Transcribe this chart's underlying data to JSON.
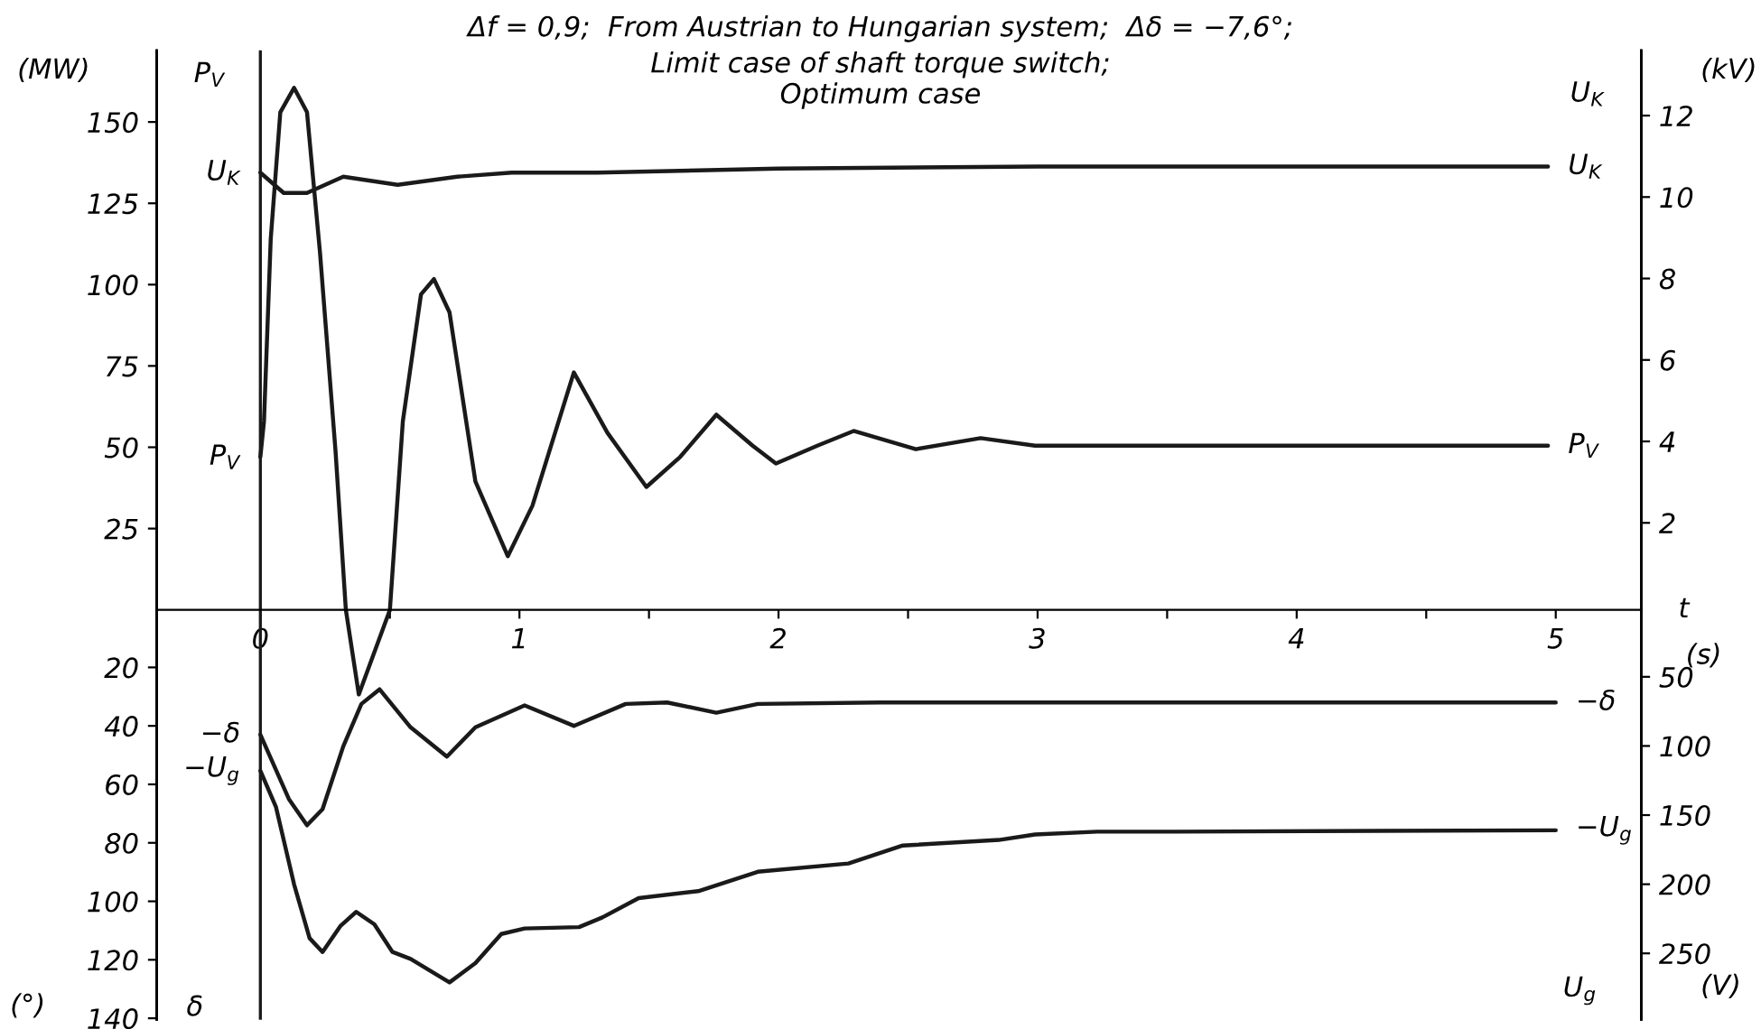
{
  "chart_data": [
    {
      "type": "line",
      "title": "Δf = 0,9;  From Austrian to Hungarian system;  Δδ = −7,6°;",
      "subtitle": "Limit case of shaft torque switch;\nOptimum case",
      "xlabel": "t",
      "ylabel": "(MW)",
      "y2label": "(kV)",
      "annotations": [
        "P$_{V}$",
        "U$_{K}$",
        "(s)"
      ],
      "xlim": [
        -0.4,
        5.33
      ],
      "xticks": [
        0,
        {
          "value": 0.5,
          "label": null
        },
        1,
        {
          "value": 1.5,
          "label": null
        },
        2,
        {
          "value": 2.5,
          "label": null
        },
        3,
        {
          "value": 3.5,
          "label": null
        },
        4,
        {
          "value": 4.5,
          "label": null
        },
        5
      ],
      "ylim": [
        -126,
        172
      ],
      "yticks": [
        25,
        50,
        75,
        100,
        125,
        150
      ],
      "y2lim": [
        -10.2,
        13.6
      ],
      "y2ticks": [
        2,
        4,
        6,
        8,
        10,
        12
      ],
      "ref_lines": [
        {
          "axis": "x",
          "value": 0
        }
      ],
      "series": [
        {
          "name": "P$_{V}$",
          "color": "#1a1a1a",
          "x": [
            0,
            0.014,
            0.04,
            0.077,
            0.13,
            0.18,
            0.23,
            0.29,
            0.33,
            0.38,
            0.5,
            0.55,
            0.62,
            0.67,
            0.73,
            0.83,
            0.955,
            1.05,
            1.21,
            1.34,
            1.49,
            1.62,
            1.76,
            1.9,
            1.99,
            2.15,
            2.29,
            2.53,
            2.78,
            2.99,
            4.97
          ],
          "values": [
            47,
            58,
            114,
            153,
            160.5,
            153,
            110,
            49,
            0,
            -26,
            0,
            58,
            97,
            101.7,
            91.5,
            39.5,
            16.5,
            32,
            73,
            54.4,
            37.8,
            47,
            60,
            50.5,
            45,
            50.5,
            55,
            49.4,
            52.8,
            50.5,
            50.5
          ]
        },
        {
          "name": "U$_{K}$",
          "color": "#1a1a1a",
          "axis": "y2",
          "x": [
            0,
            0.09,
            0.18,
            0.32,
            0.53,
            0.76,
            0.97,
            1.3,
            2.0,
            3.0,
            4.97
          ],
          "values": [
            10.6,
            10.1,
            10.1,
            10.5,
            10.3,
            10.5,
            10.6,
            10.6,
            10.7,
            10.75,
            10.75
          ]
        }
      ]
    },
    {
      "type": "line",
      "ylabel": "(°)",
      "y2label": "(V)",
      "tick_labels": "y",
      "annotations": [
        "δ",
        "U$_{g}$"
      ],
      "xlim": [
        -0.4,
        5.33
      ],
      "ylim": [
        140.5,
        -191
      ],
      "yticks": [
        20,
        40,
        60,
        80,
        100,
        120,
        140
      ],
      "y2lim": [
        298,
        -403
      ],
      "y2ticks": [
        50,
        100,
        150,
        200,
        250
      ],
      "series": [
        {
          "name": "−δ",
          "color": "#1a1a1a",
          "x": [
            0,
            0.03,
            0.11,
            0.18,
            0.24,
            0.32,
            0.39,
            0.46,
            0.58,
            0.72,
            0.83,
            1.02,
            1.21,
            1.41,
            1.57,
            1.76,
            1.92,
            2.39,
            5.0
          ],
          "values": [
            43,
            49,
            65,
            74,
            68.5,
            47,
            32.5,
            27.5,
            40.5,
            50.5,
            40.5,
            33,
            40,
            32.5,
            32,
            35.5,
            32.5,
            32,
            32
          ]
        },
        {
          "name": "−U$_{g}$",
          "color": "#1a1a1a",
          "axis": "y2",
          "x": [
            0,
            0.06,
            0.13,
            0.19,
            0.24,
            0.31,
            0.37,
            0.44,
            0.51,
            0.58,
            0.73,
            0.83,
            0.93,
            1.02,
            1.23,
            1.32,
            1.46,
            1.69,
            1.92,
            2.27,
            2.48,
            2.85,
            2.99,
            3.23,
            3.53,
            5.0
          ],
          "values": [
            118,
            144,
            200,
            239,
            249,
            230,
            220,
            229,
            249,
            254,
            271,
            257,
            236,
            232,
            231,
            224,
            210,
            205,
            191,
            185,
            172,
            168,
            164,
            162,
            162,
            161
          ]
        }
      ]
    }
  ]
}
